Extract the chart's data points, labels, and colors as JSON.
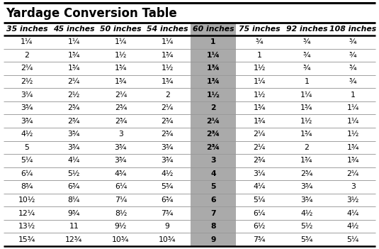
{
  "title": "Yardage Conversion Table",
  "columns": [
    "35 inches",
    "45 inches",
    "50 inches",
    "54 inches",
    "60 inches",
    "75 inches",
    "92 inches",
    "108 inches"
  ],
  "rows": [
    [
      "1¼",
      "1¼",
      "1¼",
      "1¼",
      "1",
      "¾",
      "¾",
      "¾"
    ],
    [
      "2",
      "1¾",
      "1½",
      "1¾",
      "1¼",
      "1",
      "¾",
      "¾"
    ],
    [
      "2¼",
      "1¾",
      "1¾",
      "1½",
      "1¾",
      "1½",
      "¾",
      "¾"
    ],
    [
      "2½",
      "2¼",
      "1¾",
      "1¾",
      "1¾",
      "1¼",
      "1",
      "¾"
    ],
    [
      "3¼",
      "2½",
      "2¼",
      "2",
      "1½",
      "1½",
      "1¼",
      "1"
    ],
    [
      "3¾",
      "2¾",
      "2¾",
      "2¼",
      "2",
      "1¾",
      "1¾",
      "1¼"
    ],
    [
      "3¾",
      "2¾",
      "2¾",
      "2¾",
      "2¼",
      "1¾",
      "1½",
      "1¼"
    ],
    [
      "4½",
      "3¾",
      "3",
      "2¾",
      "2¾",
      "2¼",
      "1¾",
      "1½"
    ],
    [
      "5",
      "3¾",
      "3¾",
      "3¾",
      "2¾",
      "2¼",
      "2",
      "1¾"
    ],
    [
      "5¼",
      "4¼",
      "3¾",
      "3¾",
      "3",
      "2¾",
      "1¾",
      "1¾"
    ],
    [
      "6¼",
      "5½",
      "4¾",
      "4½",
      "4",
      "3¼",
      "2¾",
      "2¼"
    ],
    [
      "8¾",
      "6¾",
      "6¼",
      "5¾",
      "5",
      "4¼",
      "3¾",
      "3"
    ],
    [
      "10½",
      "8¼",
      "7¼",
      "6¾",
      "6",
      "5¼",
      "3¾",
      "3½"
    ],
    [
      "12¼",
      "9¾",
      "8½",
      "7¾",
      "7",
      "6¼",
      "4½",
      "4¼"
    ],
    [
      "13½",
      "11",
      "9½",
      "9",
      "8",
      "6½",
      "5½",
      "4½"
    ],
    [
      "15¾",
      "12¾",
      "10¾",
      "10¾",
      "9",
      "7¾",
      "5¾",
      "5¼"
    ]
  ],
  "highlight_col": 4,
  "bg_color": "#ffffff",
  "highlight_bg": "#aaaaaa",
  "row_line_color": "#999999",
  "title_fontsize": 12,
  "header_fontsize": 7.8,
  "cell_fontsize": 7.8
}
